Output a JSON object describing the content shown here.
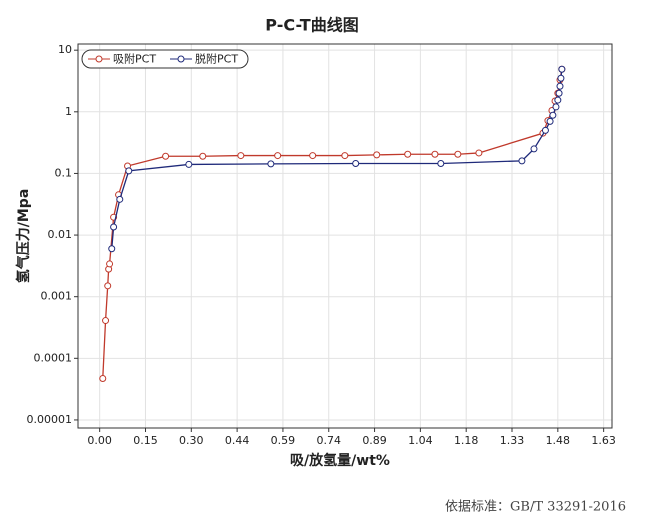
{
  "chart_data": {
    "type": "line",
    "title": "P-C-T曲线图",
    "x_label": "吸/放氢量/wt%",
    "y_label": "氢气压力/Mpa",
    "log_y": true,
    "grid": true,
    "legend": "top-left",
    "xlim": [
      -0.07,
      1.655
    ],
    "ylim": [
      7.4e-06,
      12.6
    ],
    "xticks": [
      {
        "value": 0,
        "label": "0.00"
      },
      {
        "value": 0.148,
        "label": "0.15"
      },
      {
        "value": 0.296,
        "label": "0.30"
      },
      {
        "value": 0.444,
        "label": "0.44"
      },
      {
        "value": 0.592,
        "label": "0.59"
      },
      {
        "value": 0.74,
        "label": "0.74"
      },
      {
        "value": 0.888,
        "label": "0.89"
      },
      {
        "value": 1.036,
        "label": "1.04"
      },
      {
        "value": 1.184,
        "label": "1.18"
      },
      {
        "value": 1.332,
        "label": "1.33"
      },
      {
        "value": 1.48,
        "label": "1.48"
      },
      {
        "value": 1.628,
        "label": "1.63"
      }
    ],
    "yticks": [
      10,
      1,
      0.1,
      0.01,
      0.001,
      0.0001,
      1e-05
    ],
    "series": [
      {
        "name": "吸附PCT",
        "color": "#c0392b",
        "x": [
          0.01,
          0.019,
          0.026,
          0.029,
          0.032,
          0.045,
          0.061,
          0.09,
          0.213,
          0.333,
          0.456,
          0.575,
          0.688,
          0.792,
          0.895,
          0.995,
          1.083,
          1.157,
          1.225,
          1.432,
          1.448,
          1.461,
          1.471,
          1.48,
          1.487,
          1.493
        ],
        "values": [
          4.7e-05,
          0.00041,
          0.0015,
          0.0028,
          0.0034,
          0.0195,
          0.045,
          0.132,
          0.19,
          0.19,
          0.195,
          0.195,
          0.195,
          0.195,
          0.2,
          0.205,
          0.205,
          0.205,
          0.215,
          0.45,
          0.72,
          1.05,
          1.5,
          2.0,
          3.3,
          4.9
        ]
      },
      {
        "name": "脱附PCT",
        "color": "#1f2a7a",
        "x": [
          1.493,
          1.49,
          1.487,
          1.484,
          1.48,
          1.474,
          1.464,
          1.455,
          1.44,
          1.403,
          1.364,
          1.102,
          0.827,
          0.553,
          0.288,
          0.094,
          0.065,
          0.045,
          0.039
        ],
        "values": [
          4.9,
          3.5,
          2.6,
          2.0,
          1.55,
          1.2,
          0.88,
          0.7,
          0.5,
          0.25,
          0.16,
          0.145,
          0.145,
          0.143,
          0.14,
          0.11,
          0.038,
          0.0135,
          0.006
        ]
      }
    ],
    "footer": "依据标准：GB/T 33291-2016"
  }
}
